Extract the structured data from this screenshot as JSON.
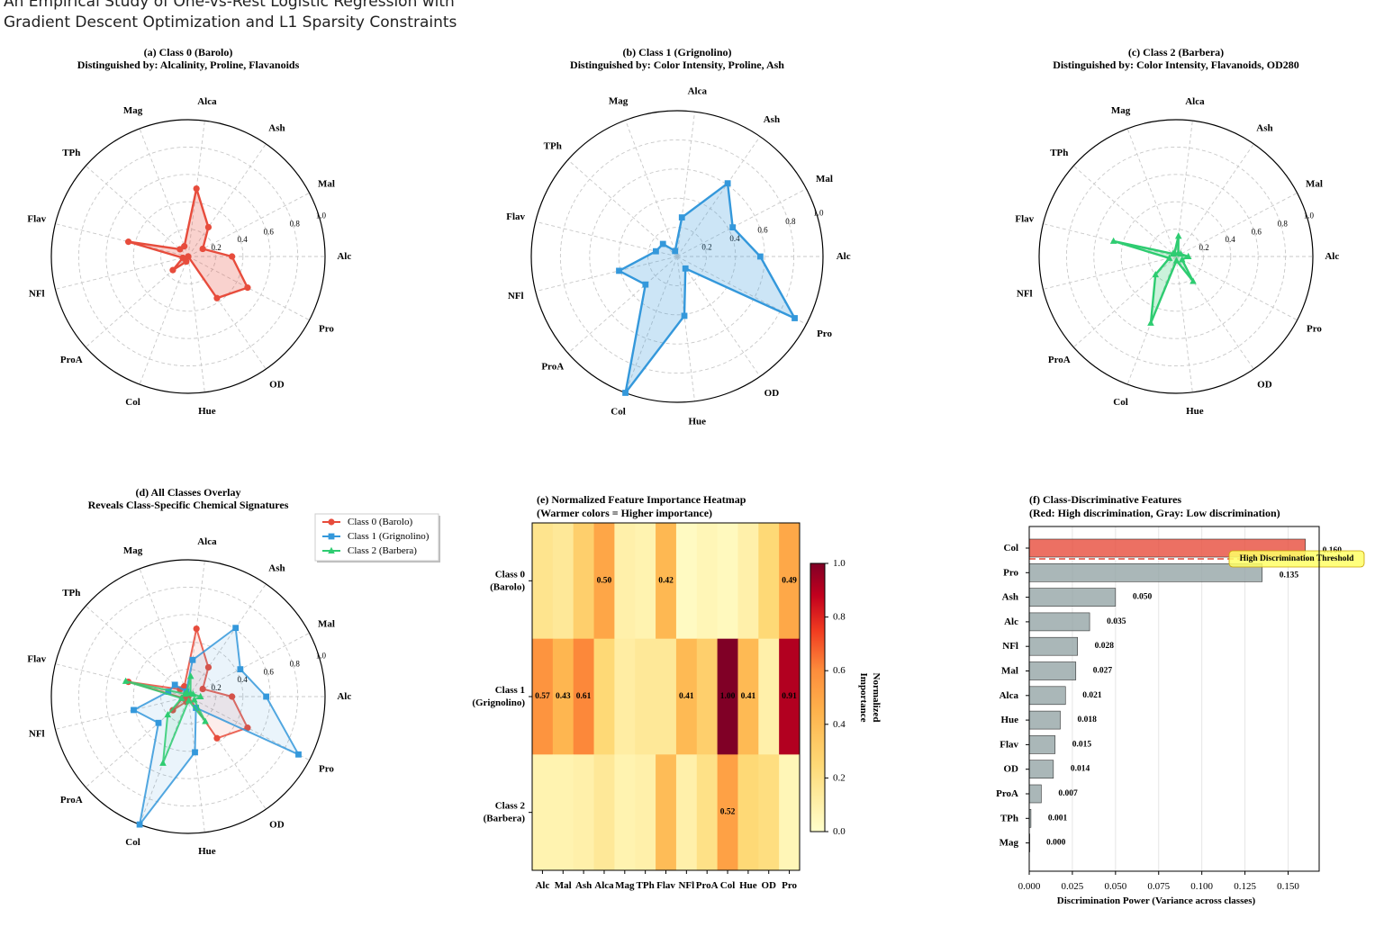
{
  "title": [
    "An Empirical Study of One-vs-Rest Logistic Regression with",
    "Gradient Descent Optimization and L1 Sparsity Constraints"
  ],
  "colors": {
    "class0": "#e74c3c",
    "class1": "#3498db",
    "class2": "#2ecc71",
    "bar_high": "#e74c3c",
    "bar_low": "#95a5a6"
  },
  "chart_data": [
    {
      "type": "radar",
      "panel": "a",
      "title": [
        "(a) Class 0 (Barolo)",
        "Distinguished by: Alcalinity, Proline, Flavanoids"
      ],
      "categories": [
        "Alc",
        "Mal",
        "Ash",
        "Alca",
        "Mag",
        "TPh",
        "Flav",
        "NFl",
        "ProA",
        "Col",
        "Hue",
        "OD",
        "Pro"
      ],
      "radial_ticks": [
        "0.2",
        "0.4",
        "0.6",
        "0.8",
        "1.0"
      ],
      "rmax": 1.0,
      "series": [
        {
          "name": "Class 0 (Barolo)",
          "color": "#e74c3c",
          "marker": "circle",
          "values": [
            0.32,
            0.12,
            0.26,
            0.5,
            0.08,
            0.08,
            0.45,
            0.04,
            0.15,
            0.04,
            0.0,
            0.37,
            0.49
          ]
        }
      ]
    },
    {
      "type": "radar",
      "panel": "b",
      "title": [
        "(b) Class 1 (Grignolino)",
        "Distinguished by: Color Intensity, Proline, Ash"
      ],
      "categories": [
        "Alc",
        "Mal",
        "Ash",
        "Alca",
        "Mag",
        "TPh",
        "Flav",
        "NFl",
        "ProA",
        "Col",
        "Hue",
        "OD",
        "Pro"
      ],
      "radial_ticks": [
        "0.2",
        "0.4",
        "0.6",
        "0.8",
        "1.0"
      ],
      "rmax": 1.0,
      "series": [
        {
          "name": "Class 1 (Grignolino)",
          "color": "#3498db",
          "marker": "square",
          "values": [
            0.57,
            0.43,
            0.61,
            0.27,
            0.04,
            0.13,
            0.15,
            0.41,
            0.29,
            1.0,
            0.41,
            0.1,
            0.91
          ]
        }
      ]
    },
    {
      "type": "radar",
      "panel": "c",
      "title": [
        "(c) Class 2 (Barbera)",
        "Distinguished by: Color Intensity, Flavanoids, OD280"
      ],
      "categories": [
        "Alc",
        "Mal",
        "Ash",
        "Alca",
        "Mag",
        "TPh",
        "Flav",
        "NFl",
        "ProA",
        "Col",
        "Hue",
        "OD",
        "Pro"
      ],
      "radial_ticks": [
        "0.2",
        "0.4",
        "0.6",
        "0.8",
        "1.0"
      ],
      "rmax": 1.0,
      "series": [
        {
          "name": "Class 2 (Barbera)",
          "color": "#2ecc71",
          "marker": "triangle",
          "values": [
            0.09,
            0.04,
            0.03,
            0.15,
            0.03,
            0.03,
            0.47,
            0.05,
            0.2,
            0.52,
            0.03,
            0.22,
            0.05
          ]
        }
      ]
    },
    {
      "type": "radar",
      "panel": "d",
      "title": [
        "(d) All Classes Overlay",
        "Reveals Class-Specific Chemical Signatures"
      ],
      "categories": [
        "Alc",
        "Mal",
        "Ash",
        "Alca",
        "Mag",
        "TPh",
        "Flav",
        "NFl",
        "ProA",
        "Col",
        "Hue",
        "OD",
        "Pro"
      ],
      "radial_ticks": [
        "0.2",
        "0.4",
        "0.6",
        "0.8",
        "1.0"
      ],
      "rmax": 1.0,
      "legend": "top-right",
      "series": [
        {
          "name": "Class 0 (Barolo)",
          "color": "#e74c3c",
          "marker": "circle",
          "values": [
            0.32,
            0.12,
            0.26,
            0.5,
            0.08,
            0.08,
            0.45,
            0.04,
            0.15,
            0.04,
            0.0,
            0.37,
            0.49
          ]
        },
        {
          "name": "Class 1 (Grignolino)",
          "color": "#3498db",
          "marker": "square",
          "values": [
            0.57,
            0.43,
            0.61,
            0.27,
            0.04,
            0.13,
            0.15,
            0.41,
            0.29,
            1.0,
            0.41,
            0.1,
            0.91
          ]
        },
        {
          "name": "Class 2 (Barbera)",
          "color": "#2ecc71",
          "marker": "triangle",
          "values": [
            0.09,
            0.04,
            0.03,
            0.15,
            0.03,
            0.03,
            0.47,
            0.05,
            0.2,
            0.52,
            0.03,
            0.22,
            0.05
          ]
        }
      ]
    },
    {
      "type": "heatmap",
      "panel": "e",
      "title": [
        "(e) Normalized Feature Importance Heatmap",
        "(Warmer colors = Higher importance)"
      ],
      "columns": [
        "Alc",
        "Mal",
        "Ash",
        "Alca",
        "Mag",
        "TPh",
        "Flav",
        "NFl",
        "ProA",
        "Col",
        "Hue",
        "OD",
        "Pro"
      ],
      "rows": [
        [
          "Class 0",
          "(Barolo)"
        ],
        [
          "Class 1",
          "(Grignolino)"
        ],
        [
          "Class 2",
          "(Barbera)"
        ]
      ],
      "values": [
        [
          0.18,
          0.15,
          0.3,
          0.5,
          0.1,
          0.08,
          0.42,
          0.03,
          0.06,
          0.04,
          0.1,
          0.25,
          0.49
        ],
        [
          0.57,
          0.43,
          0.61,
          0.25,
          0.12,
          0.15,
          0.15,
          0.41,
          0.3,
          1.0,
          0.41,
          0.1,
          0.91
        ],
        [
          0.08,
          0.08,
          0.1,
          0.15,
          0.08,
          0.1,
          0.4,
          0.1,
          0.2,
          0.52,
          0.25,
          0.22,
          0.06
        ]
      ],
      "annotations": [
        {
          "row": 0,
          "col": 3,
          "text": "0.50"
        },
        {
          "row": 0,
          "col": 6,
          "text": "0.42"
        },
        {
          "row": 0,
          "col": 12,
          "text": "0.49"
        },
        {
          "row": 1,
          "col": 0,
          "text": "0.57"
        },
        {
          "row": 1,
          "col": 1,
          "text": "0.43"
        },
        {
          "row": 1,
          "col": 2,
          "text": "0.61"
        },
        {
          "row": 1,
          "col": 7,
          "text": "0.41"
        },
        {
          "row": 1,
          "col": 9,
          "text": "1.00"
        },
        {
          "row": 1,
          "col": 10,
          "text": "0.41"
        },
        {
          "row": 1,
          "col": 12,
          "text": "0.91"
        },
        {
          "row": 2,
          "col": 9,
          "text": "0.52"
        }
      ],
      "colorbar": {
        "label": [
          "Normalized",
          "Importance"
        ],
        "ticks": [
          "0.0",
          "0.2",
          "0.4",
          "0.6",
          "0.8",
          "1.0"
        ],
        "range": [
          0,
          1
        ]
      }
    },
    {
      "type": "bar",
      "orientation": "horizontal",
      "panel": "f",
      "title": [
        "(f) Class-Discriminative Features",
        "(Red: High discrimination, Gray: Low discrimination)"
      ],
      "categories": [
        "Col",
        "Pro",
        "Ash",
        "Alc",
        "NFl",
        "Mal",
        "Alca",
        "Hue",
        "Flav",
        "OD",
        "ProA",
        "TPh",
        "Mag"
      ],
      "values": [
        0.16,
        0.135,
        0.05,
        0.035,
        0.028,
        0.027,
        0.021,
        0.018,
        0.015,
        0.014,
        0.007,
        0.001,
        0.0
      ],
      "labels": [
        "0.160",
        "0.135",
        "0.050",
        "0.035",
        "0.028",
        "0.027",
        "0.021",
        "0.018",
        "0.015",
        "0.014",
        "0.007",
        "0.001",
        "0.000"
      ],
      "highlight": [
        true,
        false,
        false,
        false,
        false,
        false,
        false,
        false,
        false,
        false,
        false,
        false,
        false
      ],
      "xlabel": "Discrimination Power (Variance across classes)",
      "xticks": [
        "0.000",
        "0.025",
        "0.050",
        "0.075",
        "0.100",
        "0.125",
        "0.150"
      ],
      "xlim": [
        0,
        0.168
      ],
      "threshold": {
        "value": 0.5,
        "label": "High Discrimination Threshold"
      }
    }
  ]
}
